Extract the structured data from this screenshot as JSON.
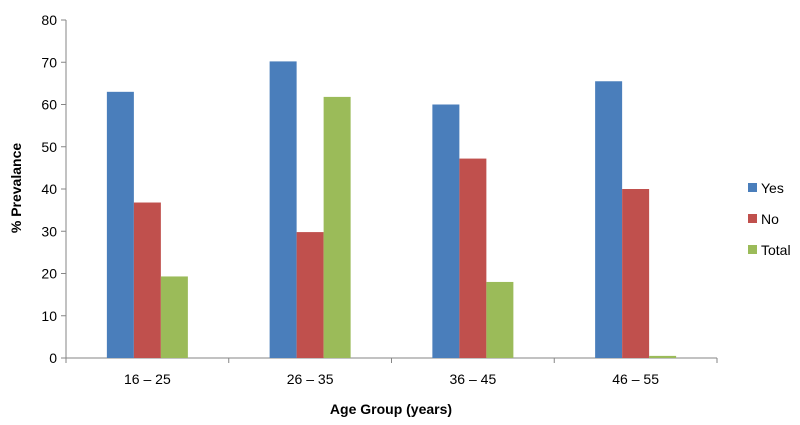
{
  "chart_data": {
    "type": "bar",
    "title": "",
    "xlabel": "Age Group (years)",
    "ylabel": "% Prevalance",
    "categories": [
      "16 – 25",
      "26 – 35",
      "36 – 45",
      "46 – 55"
    ],
    "series": [
      {
        "name": "Yes",
        "color": "#4a7ebb",
        "values": [
          63,
          70.2,
          60,
          65.5
        ]
      },
      {
        "name": "No",
        "color": "#c0504d",
        "values": [
          36.8,
          29.8,
          47.2,
          40
        ]
      },
      {
        "name": "Total",
        "color": "#9bbb59",
        "values": [
          19.3,
          61.8,
          18,
          0.5
        ]
      }
    ],
    "ylim": [
      0,
      80
    ],
    "yticks": [
      0,
      10,
      20,
      30,
      40,
      50,
      60,
      70,
      80
    ],
    "grid": false,
    "legend": "right"
  }
}
